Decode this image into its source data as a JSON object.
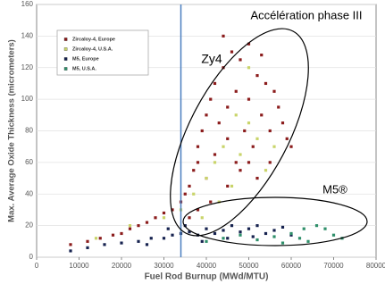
{
  "chart_data": {
    "type": "scatter",
    "x_label": "Fuel Rod Burnup (MWd/MTU)",
    "y_label": "Max. Average Oxide Thickness (micrometers)",
    "annotations": [
      "Accélération phase III",
      "Zy4",
      "M5®"
    ],
    "xlim": [
      0,
      80000
    ],
    "xticks": [
      0,
      10000,
      20000,
      30000,
      40000,
      50000,
      60000,
      70000,
      80000
    ],
    "ylim": [
      0,
      160
    ],
    "yticks": [
      0,
      20,
      40,
      60,
      80,
      100,
      120,
      140,
      160
    ],
    "grid": true,
    "legend": "upper left",
    "vline": 34000,
    "vline_color": "#4a7fc0",
    "series": [
      {
        "name": "Zircaloy-4, Europe",
        "color": "#8b1c1c",
        "x": [
          8000,
          12000,
          15000,
          18000,
          20000,
          22000,
          24000,
          26000,
          28000,
          30000,
          32000,
          34000,
          35000,
          36000,
          37000,
          38000,
          38000,
          39000,
          40000,
          40000,
          41000,
          42000,
          42000,
          43000,
          44000,
          45000,
          45000,
          46000,
          47000,
          47000,
          48000,
          49000,
          50000,
          50000,
          51000,
          52000,
          53000,
          54000,
          55000,
          56000,
          57000,
          58000,
          59000,
          60000,
          52000,
          55000,
          45000,
          38000,
          41000,
          48000,
          44000,
          36000,
          53000,
          50000
        ],
        "values": [
          8,
          10,
          12,
          14,
          15,
          18,
          20,
          22,
          25,
          28,
          30,
          35,
          40,
          45,
          55,
          60,
          70,
          80,
          50,
          90,
          100,
          65,
          110,
          85,
          120,
          75,
          95,
          130,
          60,
          105,
          125,
          80,
          135,
          100,
          70,
          115,
          90,
          110,
          80,
          105,
          95,
          85,
          75,
          70,
          50,
          60,
          45,
          30,
          35,
          55,
          140,
          25,
          128,
          60
        ]
      },
      {
        "name": "Zircaloy-4, U.S.A.",
        "color": "#c9d46a",
        "x": [
          14000,
          22000,
          30000,
          34000,
          37000,
          40000,
          42000,
          44000,
          46000,
          48000,
          50000,
          52000,
          54000,
          56000,
          43000,
          39000,
          50000,
          47000
        ],
        "values": [
          12,
          20,
          25,
          30,
          40,
          50,
          60,
          70,
          45,
          65,
          85,
          75,
          55,
          70,
          35,
          25,
          120,
          90
        ]
      },
      {
        "name": "M5, Europe",
        "color": "#16224f",
        "x": [
          8000,
          12000,
          16000,
          20000,
          24000,
          27000,
          30000,
          32000,
          34000,
          36000,
          38000,
          40000,
          42000,
          44000,
          46000,
          48000,
          50000,
          52000,
          54000,
          56000,
          58000,
          60000,
          35000,
          31000,
          26000,
          39000,
          45000,
          51000
        ],
        "values": [
          4,
          6,
          8,
          9,
          10,
          12,
          12,
          14,
          15,
          16,
          14,
          18,
          15,
          17,
          20,
          16,
          18,
          20,
          15,
          17,
          19,
          14,
          20,
          18,
          8,
          10,
          12,
          13
        ]
      },
      {
        "name": "M5, U.S.A.",
        "color": "#2f8f6a",
        "x": [
          40000,
          44000,
          48000,
          52000,
          56000,
          60000,
          62000,
          64000,
          66000,
          68000,
          70000,
          72000,
          63000,
          58000
        ],
        "values": [
          10,
          12,
          14,
          11,
          13,
          15,
          12,
          10,
          20,
          18,
          14,
          12,
          18,
          9
        ]
      }
    ]
  }
}
